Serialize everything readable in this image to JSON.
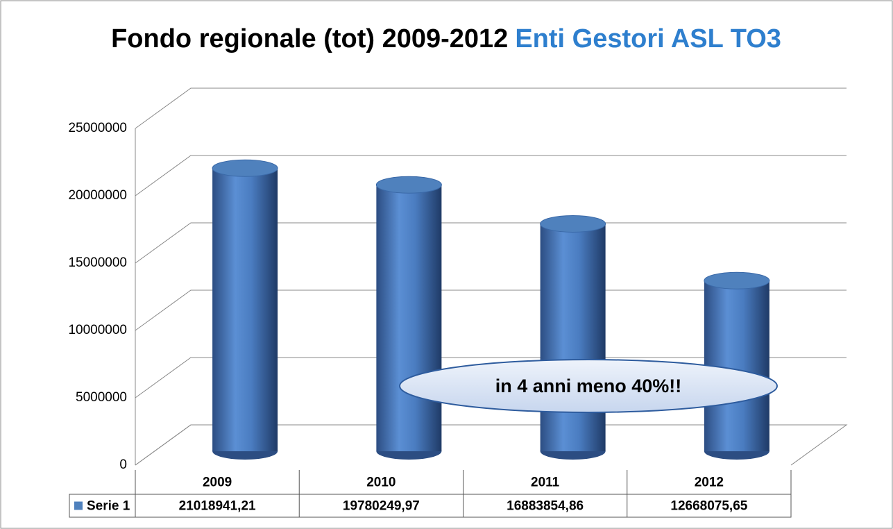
{
  "chart_data": {
    "type": "cylinder",
    "title": "Fondo regionale (tot) 2009-2012",
    "title_highlight": "Enti Gestori ASL TO3",
    "annotation": "in 4 anni meno 40%!!",
    "categories": [
      "2009",
      "2010",
      "2011",
      "2012"
    ],
    "series": [
      {
        "name": "Serie 1",
        "color": "#4f81bd",
        "values": [
          21018941.21,
          19780249.97,
          16883854.86,
          12668075.65
        ],
        "value_labels": [
          "21018941,21",
          "19780249,97",
          "16883854,86",
          "12668075,65"
        ]
      }
    ],
    "ylim": [
      0,
      25000000
    ],
    "yticks": [
      0,
      5000000,
      10000000,
      15000000,
      20000000,
      25000000
    ],
    "grid": true
  }
}
